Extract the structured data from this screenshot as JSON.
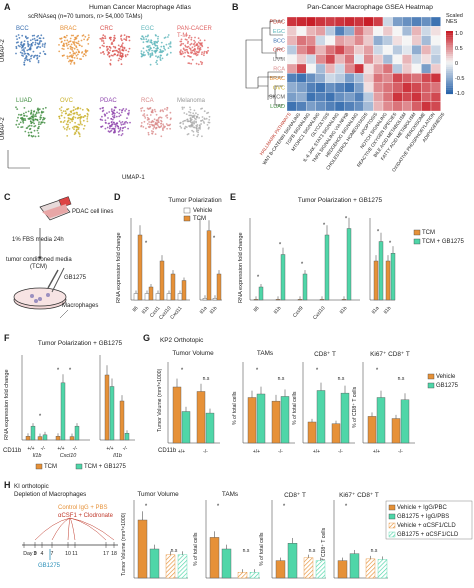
{
  "panel_letters": [
    "A",
    "B",
    "C",
    "D",
    "E",
    "F",
    "G",
    "H"
  ],
  "panelA": {
    "title": "Human Cancer Macrophage Atlas",
    "subtitle": "scRNAseq (n=70 tumors, n> 54,000 TAMs)",
    "axis_x": "UMAP-1",
    "axis_y": "UMAP-2",
    "clusters": [
      {
        "label": "BCC",
        "color": "#3a6fb0"
      },
      {
        "label": "BRAC",
        "color": "#e69138"
      },
      {
        "label": "CRC",
        "color": "#d9534f"
      },
      {
        "label": "EGC",
        "color": "#5ab4b9"
      },
      {
        "label": "PAN-CACER T-M",
        "color": "#e06666"
      },
      {
        "label": "LUAD",
        "color": "#3d8b3d"
      },
      {
        "label": "OVC",
        "color": "#c9b02a"
      },
      {
        "label": "PDAC",
        "color": "#8e44ad"
      },
      {
        "label": "RCA",
        "color": "#d98b8b"
      },
      {
        "label": "Melanoma",
        "color": "#aaaaaa"
      }
    ]
  },
  "panelB": {
    "title": "Pan-Cancer Macrophage GSEA Heatmap",
    "legend_title": "Scaled NES",
    "scale_ticks": [
      "1.0",
      "0.5",
      "0",
      "-0.5",
      "-1.0"
    ],
    "rows": [
      {
        "label": "PDAC",
        "color": "#c0392b"
      },
      {
        "label": "EGC",
        "color": "#5ab4b9"
      },
      {
        "label": "BCC",
        "color": "#3a6fb0"
      },
      {
        "label": "CRC",
        "color": "#d9534f"
      },
      {
        "label": "UVM",
        "color": "#888888"
      },
      {
        "label": "RCA",
        "color": "#d98b8b"
      },
      {
        "label": "BRAC",
        "color": "#e69138"
      },
      {
        "label": "OVC",
        "color": "#c9b02a"
      },
      {
        "label": "SKCM",
        "color": "#555555"
      },
      {
        "label": "LUAD",
        "color": "#3d8b3d"
      }
    ],
    "columns": [
      "HALLMARK PATHWAYS",
      "WNT B-CATENIN SIGNALING",
      "TGFB SIGNALING",
      "MTORC1 SIGNALING",
      "GLYCOLYSIS",
      "IL-6 JAK STAT3 SIGNALING",
      "TNFA SIGNALING VIA NFKB",
      "HEDGEHOG SIGNALING",
      "CHOLESTEROL HOMEOSTASIS",
      "APOPTOSIS",
      "NOTCH SIGNALING",
      "REACTIVE OXYGEN SPECIES",
      "BILE ACID METABOLISM",
      "FATTY ACID METABOLISM",
      "PEROXISOME",
      "OXIDATIVE PHOSPHORYLATION",
      "ADIPOGENESIS"
    ],
    "values": [
      [
        0.9,
        0.95,
        1.0,
        0.9,
        0.85,
        0.9,
        0.95,
        0.9,
        1.0,
        0.85,
        -0.2,
        -0.6,
        -0.7,
        -0.8,
        -0.7,
        -0.9
      ],
      [
        0.2,
        0.0,
        0.3,
        0.4,
        -0.3,
        -0.8,
        -0.5,
        0.6,
        0.3,
        0.0,
        0.2,
        0.0,
        -0.4,
        0.3,
        -0.2,
        0.1
      ],
      [
        0.3,
        0.6,
        0.5,
        -0.2,
        0.0,
        0.4,
        0.3,
        0.5,
        0.2,
        -0.5,
        -0.3,
        0.1,
        0.0,
        0.2,
        -0.4,
        0.0
      ],
      [
        -0.3,
        0.5,
        0.7,
        0.3,
        0.6,
        0.8,
        0.5,
        0.2,
        0.4,
        -0.2,
        0.0,
        -0.3,
        -0.1,
        -0.5,
        0.3,
        -0.2
      ],
      [
        0.0,
        0.2,
        -0.2,
        0.5,
        0.8,
        0.3,
        0.6,
        -0.1,
        0.5,
        0.2,
        -0.4,
        0.0,
        0.3,
        -0.2,
        0.1,
        -0.3
      ],
      [
        0.4,
        0.8,
        0.0,
        -0.4,
        0.3,
        -0.2,
        0.5,
        0.9,
        0.1,
        0.4,
        0.6,
        -0.3,
        0.2,
        0.0,
        -0.6,
        0.2
      ],
      [
        -0.8,
        -0.9,
        -0.7,
        -0.5,
        -0.2,
        -0.3,
        -0.6,
        -0.4,
        0.2,
        0.6,
        0.5,
        0.8,
        0.7,
        0.6,
        0.8,
        0.9
      ],
      [
        -0.5,
        -0.6,
        -0.8,
        -0.9,
        -0.7,
        -0.8,
        -0.9,
        -0.6,
        0.1,
        0.5,
        0.6,
        0.7,
        0.9,
        0.8,
        0.7,
        0.6
      ],
      [
        -0.6,
        -0.5,
        -0.9,
        -0.8,
        -0.9,
        -0.7,
        -0.6,
        -0.8,
        -0.3,
        0.4,
        0.6,
        0.9,
        0.8,
        0.9,
        0.7,
        0.8
      ],
      [
        -0.9,
        -0.8,
        -0.6,
        -0.7,
        -0.8,
        -0.9,
        -0.8,
        -0.7,
        -0.4,
        0.3,
        0.5,
        0.6,
        0.5,
        0.7,
        0.9,
        0.8
      ]
    ]
  },
  "panelC": {
    "labels": [
      "PDAC cell lines",
      "1% FBS media 24h",
      "tumor conditioned media",
      "(TCM)",
      "GB1275",
      "Macrophages"
    ]
  },
  "panelD": {
    "title": "Tumor Polarization",
    "ylabel": "RNA expression fold change",
    "legend": [
      "Vehicle",
      "TCM"
    ]
  },
  "panelE": {
    "title": "Tumor Polarization + GB1275",
    "ylabel": "RNA expression fold change",
    "legend": [
      "TCM",
      "TCM + GB1275"
    ]
  },
  "panelF": {
    "title": "Tumor Polarization + GB1275",
    "ylabel": "RNA expression fold change",
    "cd11b_label": "CD11b",
    "legend": [
      "TCM",
      "TCM + GB1275"
    ]
  },
  "panelG": {
    "header": "KP2 Orthotopic",
    "legend": [
      "Vehicle",
      "GB1275"
    ],
    "cd11b_label": "CD11b",
    "charts": [
      {
        "title": "Tumor Volume",
        "ylabel": "Tumor Volume (mm³×1000)"
      },
      {
        "title": "TAMs",
        "ylabel": "% of total cells"
      },
      {
        "title": "CD8⁺ T",
        "ylabel": "% of total cells"
      },
      {
        "title": "Ki67⁺ CD8⁺ T",
        "ylabel": "% of CD8⁺ T cells"
      }
    ]
  },
  "panelH": {
    "header1": "KI orthotopic",
    "header2": "Depletion of Macrophages",
    "tx1": "Control IgG + PBS",
    "tx2": "αCSF1 + Clodronate",
    "drug": "GB1275",
    "days": [
      "Day 0",
      "3",
      "4",
      "7",
      "10",
      "11",
      "17",
      "18"
    ],
    "legend": [
      "Vehicle + IgG/PBC",
      "GB1275 + IgG/PBS",
      "Vehicle + αCSF1/CLD",
      "GB1275 + αCSF1/CLD"
    ],
    "charts": [
      {
        "title": "Tumor Volume",
        "ylabel": "Tumor Volume (mm³×1000)"
      },
      {
        "title": "TAMs",
        "ylabel": "% of total cells"
      },
      {
        "title": "CD8⁺ T",
        "ylabel": "% of total cells"
      },
      {
        "title": "Ki67⁺ CD8⁺ T",
        "ylabel": "% of CD8⁺ T cells"
      }
    ]
  },
  "common": {
    "ns": "n.s",
    "star": "*",
    "plus": "+/+",
    "minus": "-/-"
  },
  "chart_data": [
    {
      "type": "bar",
      "panel": "D",
      "categories": [
        "Il6",
        "Il1b",
        "Cxcl1",
        "Cxcl10",
        "Cxcl11",
        "Il1a",
        "Il1b"
      ],
      "series": [
        {
          "name": "Vehicle",
          "values": [
            1,
            1,
            1,
            1,
            1,
            1,
            1
          ]
        },
        {
          "name": "TCM",
          "values": [
            10,
            2,
            6,
            4,
            3,
            40,
            15
          ]
        }
      ]
    },
    {
      "type": "bar",
      "panel": "E",
      "categories": [
        "Il6",
        "Il1b",
        "Cxcl9",
        "Cxcl10",
        "Il1b",
        "Il1a",
        "Il1b"
      ],
      "series": [
        {
          "name": "TCM",
          "values": [
            1,
            1,
            1,
            1,
            1,
            1,
            1
          ]
        },
        {
          "name": "TCM + GB1275",
          "values": [
            20,
            70,
            40,
            100,
            110,
            1.5,
            1.2
          ]
        }
      ]
    },
    {
      "type": "bar",
      "panel": "F",
      "categories": [
        "Il1b",
        "Cxcl10",
        "Il1b"
      ],
      "series": [
        {
          "name": "TCM",
          "values": [
            1,
            1,
            1
          ]
        },
        {
          "name": "TCM + GB1275",
          "values": [
            15,
            75,
            0.9
          ]
        }
      ]
    },
    {
      "type": "bar",
      "panel": "G",
      "series": [
        {
          "name": "Vehicle",
          "values": [
            0.8,
            0.65,
            0.3,
            0.38
          ]
        },
        {
          "name": "GB1275",
          "values": [
            0.45,
            0.7,
            0.75,
            0.65
          ]
        }
      ]
    },
    {
      "type": "bar",
      "panel": "H",
      "series": [
        {
          "name": "Vehicle + IgG/PBC",
          "values": [
            1.0,
            0.7,
            0.3,
            0.3
          ]
        },
        {
          "name": "GB1275 + IgG/PBS",
          "values": [
            0.5,
            0.5,
            0.6,
            0.42
          ]
        },
        {
          "name": "Vehicle + αCSF1/CLD",
          "values": [
            0.4,
            0.1,
            0.35,
            0.33
          ]
        },
        {
          "name": "GB1275 + αCSF1/CLD",
          "values": [
            0.4,
            0.1,
            0.3,
            0.32
          ]
        }
      ]
    }
  ]
}
